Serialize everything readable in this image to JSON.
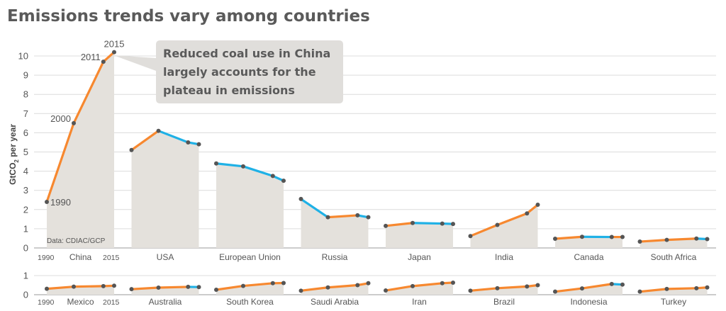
{
  "chart_data": {
    "type": "line",
    "title": "Emissions trends vary among countries",
    "ylabel": "GtCO2 per year",
    "ylabel_main": "GtCO",
    "ylabel_sub": "2",
    "ylabel_tail": " per year",
    "source": "Data: CDIAC/GCP",
    "callout": [
      "Reduced coal use in China",
      "largely accounts for the",
      "plateau in emissions"
    ],
    "x_start_label": "1990",
    "x_end_label": "2015",
    "colors": {
      "rising": "#f7882f",
      "falling": "#1fb1e6",
      "area": "#e4e1dc",
      "point": "#555555"
    },
    "years": [
      1990,
      2000,
      2011,
      2015
    ],
    "china_year_labels": [
      "1990",
      "2000",
      "2011",
      "2015"
    ],
    "top_panel": {
      "ylim": [
        0,
        10
      ],
      "yticks": [
        "0",
        "1",
        "2",
        "3",
        "4",
        "5",
        "6",
        "7",
        "8",
        "9",
        "10"
      ],
      "series": [
        {
          "name": "China",
          "values": [
            2.4,
            6.5,
            9.7,
            10.2
          ]
        },
        {
          "name": "USA",
          "values": [
            5.1,
            6.1,
            5.5,
            5.4
          ]
        },
        {
          "name": "European Union",
          "values": [
            4.4,
            4.25,
            3.75,
            3.5
          ]
        },
        {
          "name": "Russia",
          "values": [
            2.55,
            1.6,
            1.7,
            1.6
          ]
        },
        {
          "name": "Japan",
          "values": [
            1.15,
            1.3,
            1.27,
            1.25
          ]
        },
        {
          "name": "India",
          "values": [
            0.62,
            1.2,
            1.8,
            2.25
          ]
        },
        {
          "name": "Canada",
          "values": [
            0.48,
            0.58,
            0.57,
            0.57
          ]
        },
        {
          "name": "South Africa",
          "values": [
            0.33,
            0.42,
            0.49,
            0.46
          ]
        }
      ]
    },
    "bottom_panel": {
      "ylim": [
        0,
        1
      ],
      "yticks": [
        "0",
        "1"
      ],
      "series": [
        {
          "name": "Mexico",
          "values": [
            0.31,
            0.42,
            0.45,
            0.47
          ]
        },
        {
          "name": "Australia",
          "values": [
            0.29,
            0.37,
            0.41,
            0.4
          ]
        },
        {
          "name": "South Korea",
          "values": [
            0.26,
            0.46,
            0.6,
            0.61
          ]
        },
        {
          "name": "Saudi Arabia",
          "values": [
            0.21,
            0.38,
            0.5,
            0.6
          ]
        },
        {
          "name": "Iran",
          "values": [
            0.22,
            0.45,
            0.6,
            0.63
          ]
        },
        {
          "name": "Brazil",
          "values": [
            0.21,
            0.34,
            0.43,
            0.5
          ]
        },
        {
          "name": "Indonesia",
          "values": [
            0.16,
            0.33,
            0.56,
            0.53
          ]
        },
        {
          "name": "Turkey",
          "values": [
            0.16,
            0.3,
            0.34,
            0.38
          ]
        }
      ]
    }
  }
}
